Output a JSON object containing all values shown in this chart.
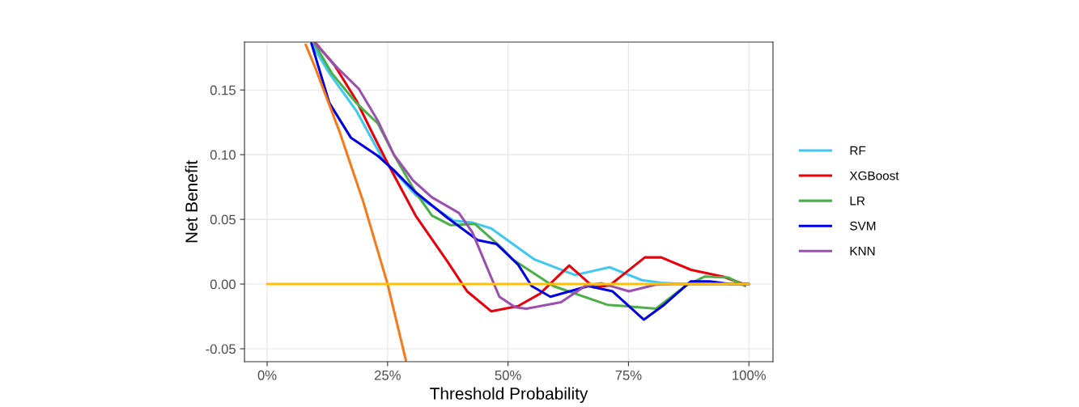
{
  "chart_data": {
    "type": "line",
    "xlabel": "Threshold Probability",
    "ylabel": "Net Benefit",
    "xlim": [
      -0.047,
      1.05
    ],
    "ylim": [
      -0.06,
      0.187
    ],
    "xticks": [
      {
        "value": 0,
        "label": "0%"
      },
      {
        "value": 0.25,
        "label": "25%"
      },
      {
        "value": 0.5,
        "label": "50%"
      },
      {
        "value": 0.75,
        "label": "75%"
      },
      {
        "value": 1,
        "label": "100%"
      }
    ],
    "yticks": [
      {
        "value": -0.05,
        "label": "-0.05"
      },
      {
        "value": 0,
        "label": "0.00"
      },
      {
        "value": 0.05,
        "label": "0.05"
      },
      {
        "value": 0.1,
        "label": "0.10"
      },
      {
        "value": 0.15,
        "label": "0.15"
      }
    ],
    "grid": true,
    "legend": "right",
    "marker": "none",
    "line_style": "solid",
    "series": [
      {
        "name": "RF",
        "color": "#3fc8f0",
        "x": [
          0.092,
          0.129,
          0.185,
          0.241,
          0.308,
          0.387,
          0.426,
          0.465,
          0.521,
          0.555,
          0.639,
          0.711,
          0.778,
          0.818,
          0.86,
          1.0
        ],
        "values": [
          0.186,
          0.163,
          0.134,
          0.096,
          0.069,
          0.049,
          0.0475,
          0.043,
          0.028,
          0.019,
          0.007,
          0.013,
          0.003,
          0.001,
          0,
          0
        ]
      },
      {
        "name": "XGBoost",
        "color": "#e8000b",
        "x": [
          0.101,
          0.14,
          0.185,
          0.218,
          0.252,
          0.308,
          0.375,
          0.415,
          0.465,
          0.521,
          0.566,
          0.627,
          0.678,
          0.711,
          0.784,
          0.818,
          0.88,
          0.947,
          0.992
        ],
        "values": [
          0.186,
          0.169,
          0.142,
          0.117,
          0.092,
          0.053,
          0.017,
          -0.0056,
          -0.021,
          -0.017,
          -0.0075,
          0.0144,
          -0.0025,
          -0.001,
          0.0206,
          0.0206,
          0.011,
          0.0057,
          -0.0004
        ]
      },
      {
        "name": "LR",
        "color": "#4daf4a",
        "x": [
          0.098,
          0.134,
          0.185,
          0.23,
          0.263,
          0.308,
          0.342,
          0.381,
          0.431,
          0.487,
          0.51,
          0.594,
          0.706,
          0.807,
          0.868,
          0.908,
          0.958,
          0.992
        ],
        "values": [
          0.186,
          0.163,
          0.14,
          0.124,
          0.1,
          0.071,
          0.053,
          0.0455,
          0.0465,
          0.028,
          0.019,
          -0.0015,
          -0.016,
          -0.019,
          -0.0015,
          0.0058,
          0.005,
          -0.0015
        ]
      },
      {
        "name": "SVM",
        "color": "#0000e0",
        "x": [
          0.092,
          0.129,
          0.174,
          0.23,
          0.263,
          0.308,
          0.375,
          0.437,
          0.476,
          0.521,
          0.549,
          0.588,
          0.667,
          0.717,
          0.782,
          0.824,
          0.879,
          0.919,
          0.96,
          1.0
        ],
        "values": [
          0.186,
          0.14,
          0.113,
          0.099,
          0.088,
          0.071,
          0.051,
          0.034,
          0.031,
          0.015,
          -0.0015,
          -0.0098,
          -0.0015,
          -0.0056,
          -0.0275,
          -0.016,
          0.002,
          0.002,
          0,
          0
        ]
      },
      {
        "name": "KNN",
        "color": "#9b4fb0",
        "x": [
          0.1,
          0.146,
          0.19,
          0.23,
          0.263,
          0.303,
          0.342,
          0.398,
          0.426,
          0.454,
          0.482,
          0.515,
          0.538,
          0.61,
          0.66,
          0.694,
          0.751,
          0.807,
          0.85,
          1.0
        ],
        "values": [
          0.186,
          0.167,
          0.151,
          0.126,
          0.1,
          0.08,
          0.067,
          0.055,
          0.04,
          0.015,
          -0.0098,
          -0.018,
          -0.019,
          -0.014,
          -0.0015,
          0.0006,
          -0.0056,
          -0.0004,
          0,
          0
        ]
      },
      {
        "color": "#f47a1c",
        "x": [
          0.08,
          0.1,
          0.15,
          0.2,
          0.25,
          0.288
        ],
        "values": [
          0.185,
          0.167,
          0.118,
          0.063,
          0,
          -0.059
        ]
      },
      {
        "color": "#ffc000",
        "x": [
          0,
          1
        ],
        "values": [
          0,
          0
        ]
      }
    ]
  }
}
